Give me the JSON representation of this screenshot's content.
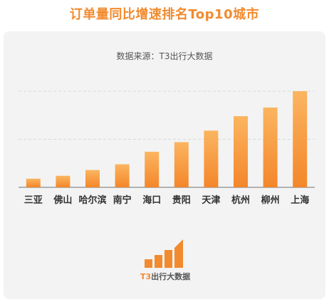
{
  "title": "订单量同比增速排名Top10城市",
  "source": "数据来源：T3出行大数据",
  "logo": {
    "brand": "T3",
    "suffix": "出行大数据",
    "icon": "t3-bar-logo-icon"
  },
  "colors": {
    "accent": "#f28a2e",
    "bar_top": "#fbb560",
    "bar_bottom": "#f4862a",
    "panel": "#f3f3f3"
  },
  "chart_data": {
    "type": "bar",
    "title": "订单量同比增速排名Top10城市",
    "categories": [
      "三亚",
      "佛山",
      "哈尔滨",
      "南宁",
      "海口",
      "贵阳",
      "天津",
      "杭州",
      "柳州",
      "上海"
    ],
    "values": [
      9,
      12,
      18,
      24,
      37,
      47,
      59,
      74,
      83,
      100
    ],
    "ylim": [
      0,
      100
    ],
    "grid": true,
    "show_y_ticks": false
  }
}
